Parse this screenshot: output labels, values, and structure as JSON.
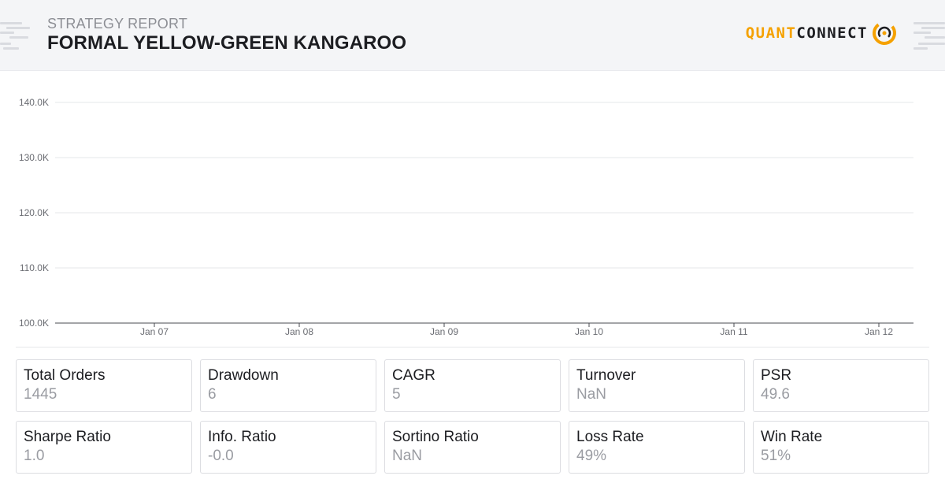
{
  "header": {
    "subtitle": "STRATEGY REPORT",
    "title": "FORMAL YELLOW-GREEN KANGAROO",
    "logo_quant": "QUANT",
    "logo_connect": "CONNECT"
  },
  "colors": {
    "brand": "#f5a100",
    "text": "#1c1d21",
    "muted": "#9a9ca2",
    "grid": "#e6e7ea"
  },
  "chart_data": {
    "type": "line",
    "title": "",
    "xlabel": "",
    "ylabel": "",
    "y_ticks": [
      "100.0K",
      "110.0K",
      "120.0K",
      "130.0K",
      "140.0K"
    ],
    "ylim": [
      100000,
      140000
    ],
    "x_ticks": [
      "Jan 07",
      "Jan 08",
      "Jan 09",
      "Jan 10",
      "Jan 11",
      "Jan 12"
    ],
    "grid": true,
    "series": []
  },
  "stats": [
    {
      "label": "Total Orders",
      "value": "1445"
    },
    {
      "label": "Drawdown",
      "value": "6"
    },
    {
      "label": "CAGR",
      "value": "5"
    },
    {
      "label": "Turnover",
      "value": "NaN"
    },
    {
      "label": "PSR",
      "value": "49.6"
    },
    {
      "label": "Sharpe Ratio",
      "value": "1.0"
    },
    {
      "label": "Info. Ratio",
      "value": "-0.0"
    },
    {
      "label": "Sortino Ratio",
      "value": "NaN"
    },
    {
      "label": "Loss Rate",
      "value": "49%"
    },
    {
      "label": "Win Rate",
      "value": "51%"
    }
  ]
}
